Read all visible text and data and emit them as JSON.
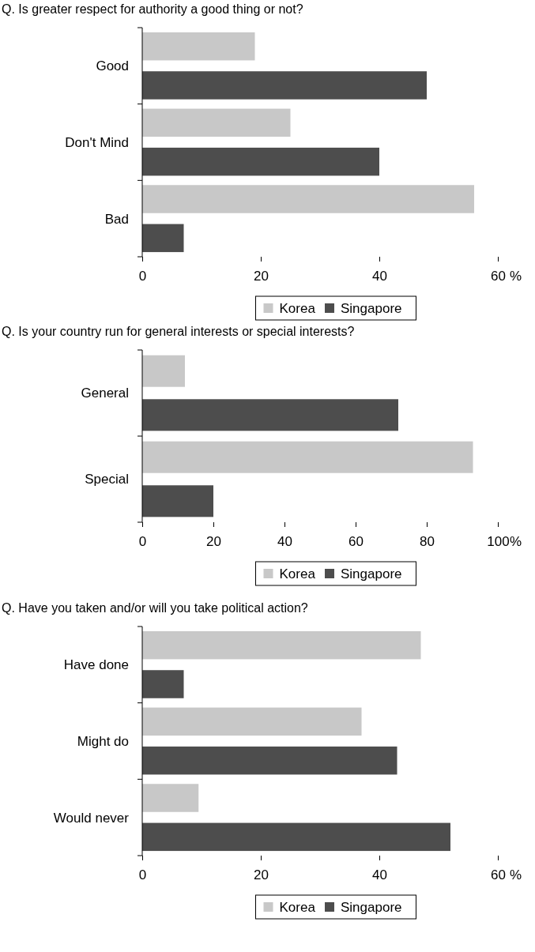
{
  "chart_data": [
    {
      "type": "bar",
      "orientation": "horizontal",
      "title": "Q. Is greater respect for authority a good thing or not?",
      "categories": [
        "Good",
        "Don't Mind",
        "Bad"
      ],
      "xlabel": "%",
      "xlim": [
        0,
        60
      ],
      "xticks": [
        0,
        20,
        40,
        60
      ],
      "legend": "bottom",
      "series": [
        {
          "name": "Korea",
          "color": "#c8c8c8",
          "values": [
            19,
            25,
            56
          ]
        },
        {
          "name": "Singapore",
          "color": "#4d4d4d",
          "values": [
            48,
            40,
            7
          ]
        }
      ]
    },
    {
      "type": "bar",
      "orientation": "horizontal",
      "title": "Q. Is your country run for general interests or special interests?",
      "categories": [
        "General",
        "Special"
      ],
      "xlabel": "%",
      "xlim": [
        0,
        100
      ],
      "xticks": [
        0,
        20,
        40,
        60,
        80,
        100
      ],
      "legend": "bottom",
      "series": [
        {
          "name": "Korea",
          "color": "#c8c8c8",
          "values": [
            12,
            93
          ]
        },
        {
          "name": "Singapore",
          "color": "#4d4d4d",
          "values": [
            72,
            20
          ]
        }
      ]
    },
    {
      "type": "bar",
      "orientation": "horizontal",
      "title": "Q. Have you taken and/or will you take political action?",
      "categories": [
        "Have done",
        "Might do",
        "Would never"
      ],
      "xlabel": "%",
      "xlim": [
        0,
        60
      ],
      "xticks": [
        0,
        20,
        40,
        60
      ],
      "legend": "bottom",
      "series": [
        {
          "name": "Korea",
          "color": "#c8c8c8",
          "values": [
            47,
            37,
            9.5
          ]
        },
        {
          "name": "Singapore",
          "color": "#4d4d4d",
          "values": [
            7,
            43,
            52
          ]
        }
      ]
    }
  ]
}
